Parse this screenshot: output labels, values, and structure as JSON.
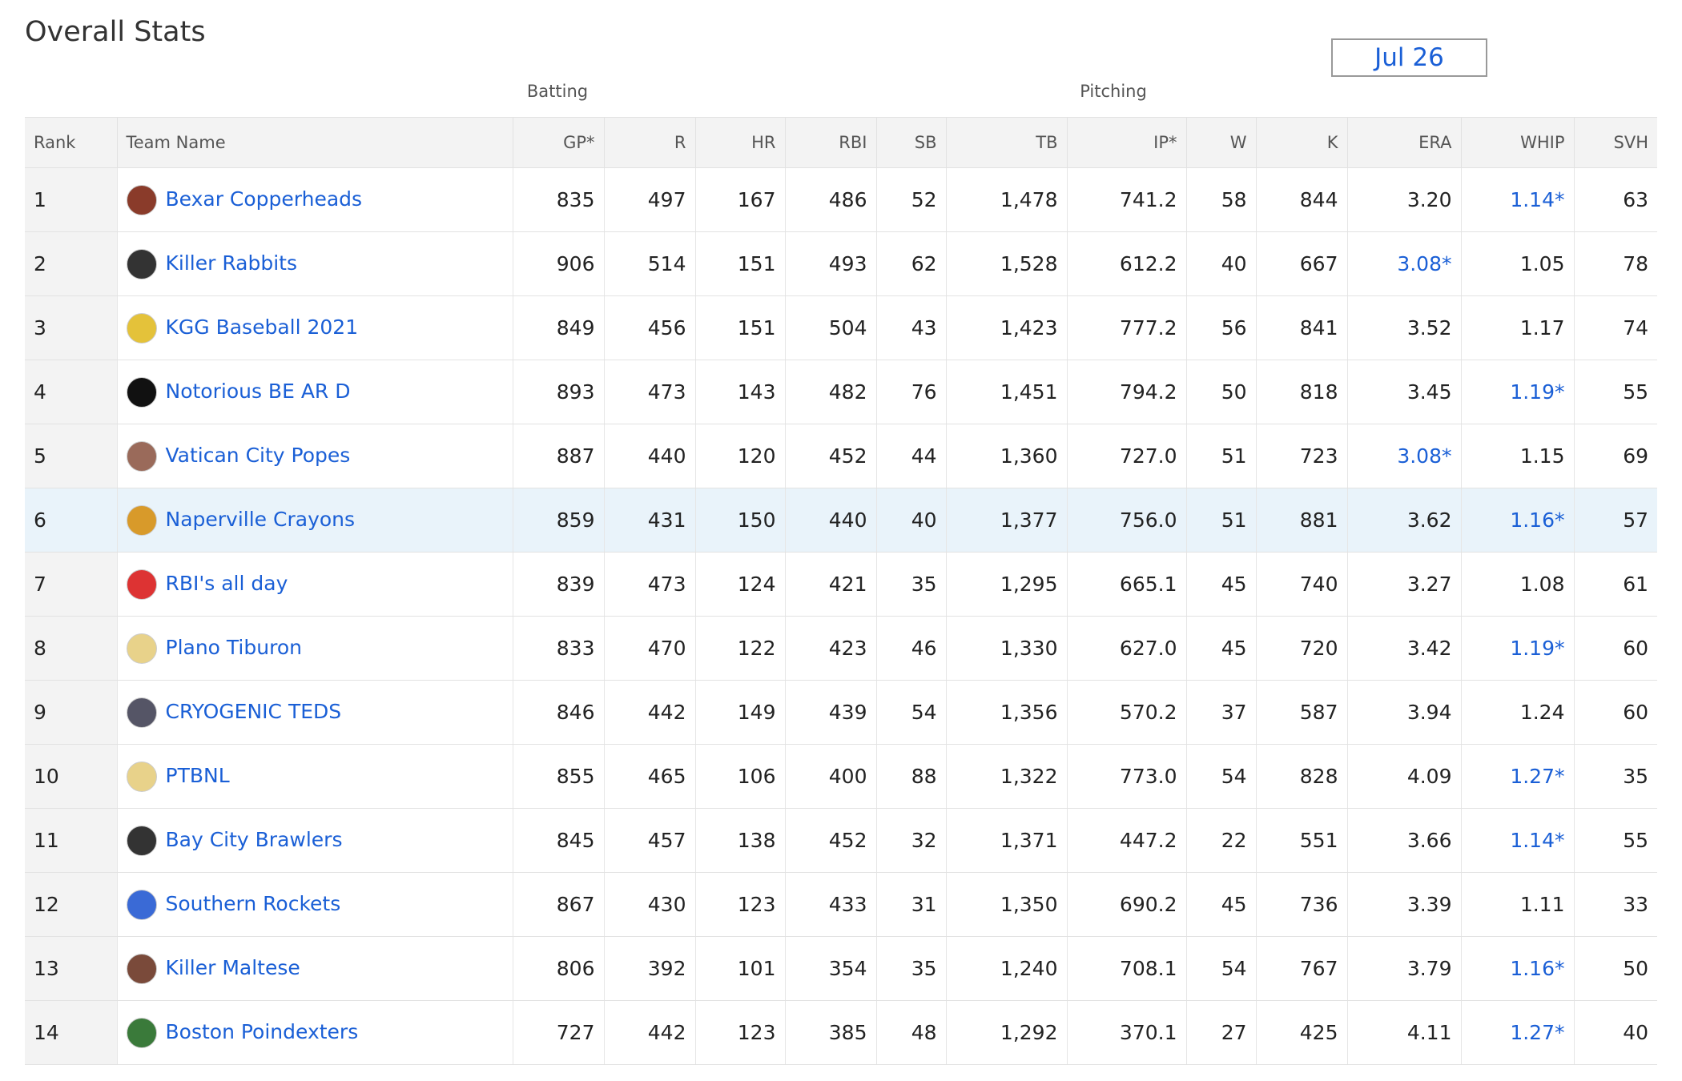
{
  "header": {
    "title": "Overall Stats",
    "date": "Jul 26",
    "groups": [
      "Batting",
      "Pitching"
    ]
  },
  "table": {
    "columns": [
      "Rank",
      "Team Name",
      "GP*",
      "R",
      "HR",
      "RBI",
      "SB",
      "TB",
      "IP*",
      "W",
      "K",
      "ERA",
      "WHIP",
      "SVH"
    ],
    "rows": [
      [
        1,
        "Bexar Copperheads",
        835,
        497,
        167,
        486,
        52,
        "1,478",
        "741.2",
        58,
        844,
        "3.20",
        "1.14*",
        63
      ],
      [
        2,
        "Killer Rabbits",
        906,
        514,
        151,
        493,
        62,
        "1,528",
        "612.2",
        40,
        667,
        "3.08*",
        "1.05",
        78
      ],
      [
        3,
        "KGG Baseball 2021",
        849,
        456,
        151,
        504,
        43,
        "1,423",
        "777.2",
        56,
        841,
        "3.52",
        "1.17",
        74
      ],
      [
        4,
        "Notorious BE AR D",
        893,
        473,
        143,
        482,
        76,
        "1,451",
        "794.2",
        50,
        818,
        "3.45",
        "1.19*",
        55
      ],
      [
        5,
        "Vatican City Popes",
        887,
        440,
        120,
        452,
        44,
        "1,360",
        "727.0",
        51,
        723,
        "3.08*",
        "1.15",
        69
      ],
      [
        6,
        "Naperville Crayons",
        859,
        431,
        150,
        440,
        40,
        "1,377",
        "756.0",
        51,
        881,
        "3.62",
        "1.16*",
        57
      ],
      [
        7,
        "RBI's all day",
        839,
        473,
        124,
        421,
        35,
        "1,295",
        "665.1",
        45,
        740,
        "3.27",
        "1.08",
        61
      ],
      [
        8,
        "Plano Tiburon",
        833,
        470,
        122,
        423,
        46,
        "1,330",
        "627.0",
        45,
        720,
        "3.42",
        "1.19*",
        60
      ],
      [
        9,
        "CRYOGENIC TEDS",
        846,
        442,
        149,
        439,
        54,
        "1,356",
        "570.2",
        37,
        587,
        "3.94",
        "1.24",
        60
      ],
      [
        10,
        "PTBNL",
        855,
        465,
        106,
        400,
        88,
        "1,322",
        "773.0",
        54,
        828,
        "4.09",
        "1.27*",
        35
      ],
      [
        11,
        "Bay City Brawlers",
        845,
        457,
        138,
        452,
        32,
        "1,371",
        "447.2",
        22,
        551,
        "3.66",
        "1.14*",
        55
      ],
      [
        12,
        "Southern Rockets",
        867,
        430,
        123,
        433,
        31,
        "1,350",
        "690.2",
        45,
        736,
        "3.39",
        "1.11",
        33
      ],
      [
        13,
        "Killer Maltese",
        806,
        392,
        101,
        354,
        35,
        "1,240",
        "708.1",
        54,
        767,
        "3.79",
        "1.16*",
        50
      ],
      [
        14,
        "Boston Poindexters",
        727,
        442,
        123,
        385,
        48,
        "1,292",
        "370.1",
        27,
        425,
        "4.11",
        "1.27*",
        40
      ]
    ]
  }
}
